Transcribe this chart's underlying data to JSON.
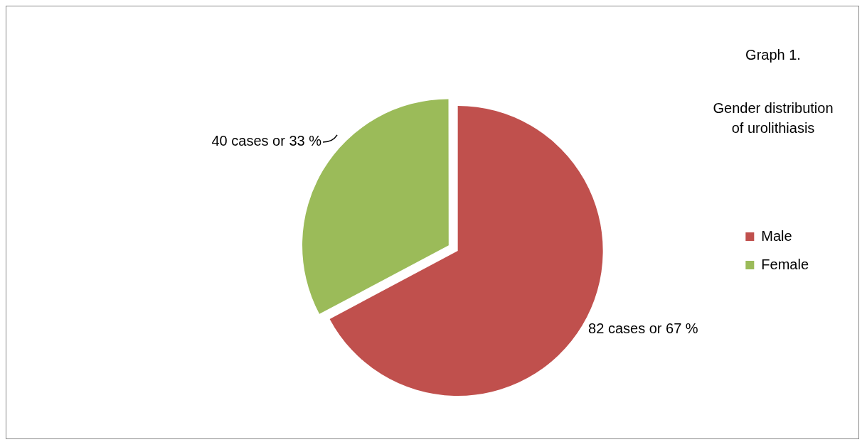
{
  "chart_data": {
    "type": "pie",
    "title": "Graph 1.",
    "subtitle": "Gender distribution of urolithiasis",
    "categories": [
      "Male",
      "Female"
    ],
    "values": [
      82,
      40
    ],
    "colors": [
      "#c0504d",
      "#9bbb59"
    ],
    "value_labels": [
      "82 cases or 67 %",
      "40 cases or 33 %"
    ],
    "legend": "right"
  }
}
